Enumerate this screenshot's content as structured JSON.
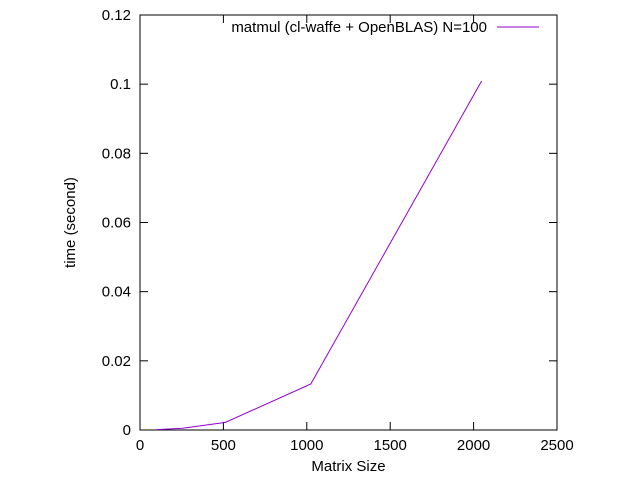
{
  "chart_data": {
    "type": "line",
    "title": "",
    "xlabel": "Matrix Size",
    "ylabel": "time (second)",
    "xlim": [
      0,
      2500
    ],
    "ylim": [
      0,
      0.12
    ],
    "x_ticks": [
      0,
      500,
      1000,
      1500,
      2000,
      2500
    ],
    "y_ticks": [
      0,
      0.02,
      0.04,
      0.06,
      0.08,
      0.1,
      0.12
    ],
    "x_tick_labels": [
      "0",
      "500",
      "1000",
      "1500",
      "2000",
      "2500"
    ],
    "y_tick_labels": [
      "0",
      "0.02",
      "0.04",
      "0.06",
      "0.08",
      "0.1",
      "0.12"
    ],
    "grid": false,
    "legend_position": "top-right",
    "series": [
      {
        "name": "matmul (cl-waffe + OpenBLAS) N=100",
        "color": "#9400d3",
        "x": [
          100,
          256,
          512,
          1024,
          2048
        ],
        "y": [
          0.0001,
          0.0005,
          0.0022,
          0.0133,
          0.1009
        ]
      }
    ]
  }
}
